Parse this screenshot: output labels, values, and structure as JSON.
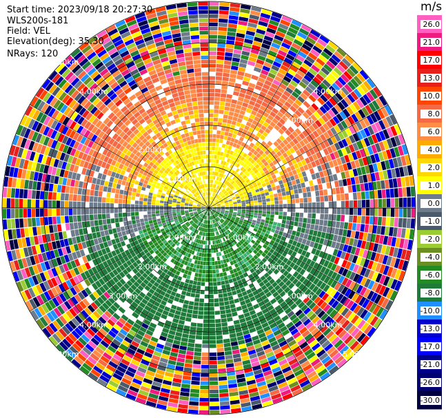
{
  "header": {
    "start_time": "Start time: 2023/09/18 20:27:30",
    "instrument": "WLS200s-181",
    "field": "Field: VEL",
    "elevation": "Elevation(deg): 35.30",
    "nrays": "NRays: 120"
  },
  "chart_data": {
    "type": "ppi-radar",
    "field": "VEL",
    "n_rays": 120,
    "range_rings_km": [
      1.0,
      2.0,
      3.0,
      4.0,
      5.0
    ],
    "ring_labels": [
      {
        "text": "1.00km",
        "ring": 1,
        "angle": 315
      },
      {
        "text": "1.00km",
        "ring": 1,
        "angle": 135
      },
      {
        "text": "1.00km",
        "ring": 1,
        "angle": 225
      },
      {
        "text": "2.00km",
        "ring": 2,
        "angle": 315
      },
      {
        "text": "2.00km",
        "ring": 2,
        "angle": 135
      },
      {
        "text": "2.00km",
        "ring": 2,
        "angle": 225
      },
      {
        "text": "3.00km",
        "ring": 3,
        "angle": 45
      },
      {
        "text": "3.00km",
        "ring": 3,
        "angle": 135
      },
      {
        "text": "3.00km",
        "ring": 3,
        "angle": 225
      },
      {
        "text": "4.00km",
        "ring": 4,
        "angle": 45
      },
      {
        "text": "4.00km",
        "ring": 4,
        "angle": 315
      },
      {
        "text": "4.00km",
        "ring": 4,
        "angle": 135
      },
      {
        "text": "4.00km",
        "ring": 4,
        "angle": 225
      },
      {
        "text": "5.00km",
        "ring": 5,
        "angle": 315
      },
      {
        "text": "5.00km",
        "ring": 5,
        "angle": 135
      },
      {
        "text": "5.00km",
        "ring": 5,
        "angle": 225
      }
    ],
    "colorbar": {
      "unit": "m/s",
      "tick_labels": [
        "26.0",
        "21.0",
        "17.0",
        "13.0",
        "10.0",
        "8.0",
        "6.0",
        "4.0",
        "2.0",
        "1.0",
        "0.0",
        "-1.0",
        "-2.0",
        "-4.0",
        "-6.0",
        "-8.0",
        "-10.0",
        "-13.0",
        "-17.0",
        "-21.0",
        "-26.0",
        "-30.0"
      ],
      "colors": [
        "#ff5fc0",
        "#ee1a7f",
        "#ff0000",
        "#e8201c",
        "#ff4500",
        "#f56a45",
        "#ff8c46",
        "#ffaa00",
        "#ffd700",
        "#ffff00",
        "#6e7b8b",
        "#4a5a6a",
        "#9acd32",
        "#6b8e23",
        "#228b22",
        "#1e7b3a",
        "#1e90ff",
        "#0000cd",
        "#0000ff",
        "#00008b",
        "#000070",
        "#000040"
      ]
    },
    "pattern": {
      "near_north_color": "#ffff00",
      "near_north_alt_color": "#ffd700",
      "mid_north_color": "#ff8c46",
      "far_north_color": "#f56a45",
      "near_south_color": "#228b22",
      "mid_south_color": "#1e7b3a",
      "near_gray_color": "#6e7b8b",
      "noise_start_km": 3.7
    }
  }
}
